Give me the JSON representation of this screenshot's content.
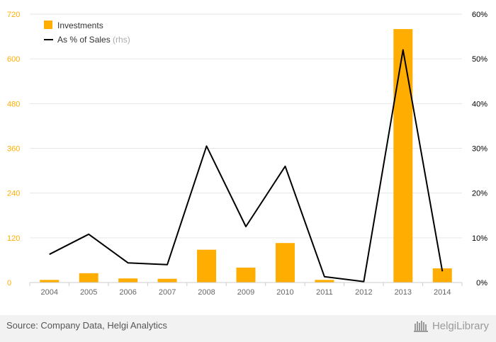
{
  "chart_data": {
    "type": "bar+line",
    "categories": [
      "2004",
      "2005",
      "2006",
      "2007",
      "2008",
      "2009",
      "2010",
      "2011",
      "2012",
      "2013",
      "2014"
    ],
    "series": [
      {
        "name": "Investments",
        "type": "bar",
        "axis": "left",
        "color": "#ffad00",
        "values": [
          7,
          25,
          11,
          10,
          88,
          40,
          106,
          7,
          0,
          680,
          38
        ]
      },
      {
        "name": "As % of Sales",
        "suffix": "(rhs)",
        "type": "line",
        "axis": "right",
        "color": "#000000",
        "values": [
          6.3,
          10.8,
          4.4,
          4.0,
          30.5,
          12.5,
          26.0,
          1.3,
          0.2,
          52.0,
          2.5
        ]
      }
    ],
    "left_axis": {
      "ticks": [
        "0",
        "120",
        "240",
        "360",
        "480",
        "600",
        "720"
      ],
      "ylim": [
        0,
        720
      ],
      "color": "#ffad00"
    },
    "right_axis": {
      "ticks": [
        "0%",
        "10%",
        "20%",
        "30%",
        "40%",
        "50%",
        "60%"
      ],
      "ylim": [
        0,
        60
      ],
      "color": "#000000"
    },
    "grid": true,
    "legend_position": "top-left"
  },
  "footer": {
    "source": "Source: Company Data, Helgi Analytics",
    "logo_text": "HelgiLibrary"
  }
}
